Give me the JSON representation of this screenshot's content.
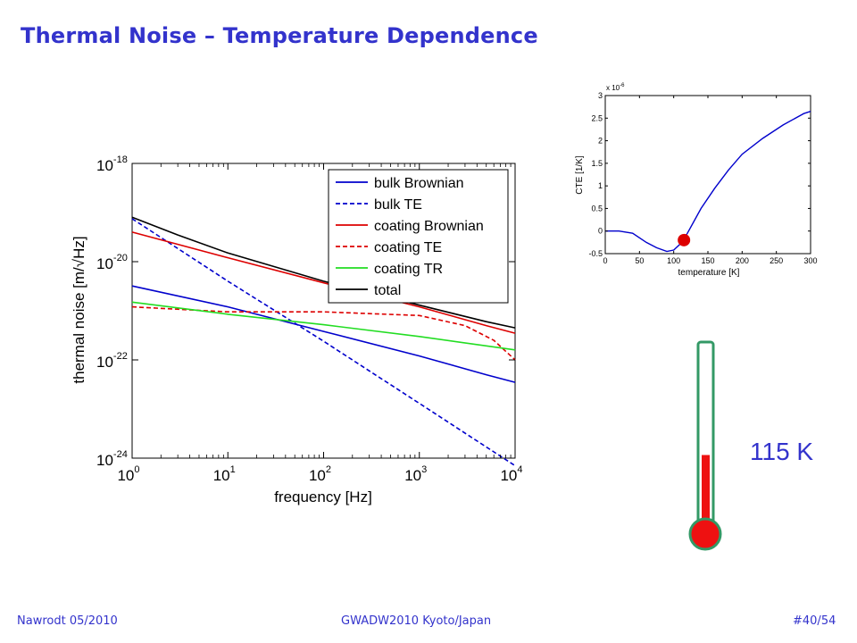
{
  "slide": {
    "title": "Thermal Noise – Temperature Dependence"
  },
  "footer": {
    "left": "Nawrodt 05/2010",
    "center": "GWADW2010 Kyoto/Japan",
    "right": "#40/54"
  },
  "thermometer": {
    "label": "115 K",
    "level": 0.42
  },
  "colors": {
    "title": "#3333cc",
    "blue": "#0000cc",
    "red": "#dd0000",
    "green": "#22dd22",
    "black": "#000000"
  },
  "chart_data": [
    {
      "type": "line",
      "xlabel": "frequency [Hz]",
      "ylabel": "thermal noise [m/√Hz]",
      "xscale": "log",
      "yscale": "log",
      "xlim": [
        1,
        10000
      ],
      "ylim": [
        1e-24,
        1e-18
      ],
      "xticks": [
        {
          "v": 1,
          "base": "10",
          "exp": "0"
        },
        {
          "v": 10,
          "base": "10",
          "exp": "1"
        },
        {
          "v": 100,
          "base": "10",
          "exp": "2"
        },
        {
          "v": 1000,
          "base": "10",
          "exp": "3"
        },
        {
          "v": 10000,
          "base": "10",
          "exp": "4"
        }
      ],
      "yticks": [
        {
          "v": 1e-18,
          "base": "10",
          "exp": "-18"
        },
        {
          "v": 1e-20,
          "base": "10",
          "exp": "-20"
        },
        {
          "v": 1e-22,
          "base": "10",
          "exp": "-22"
        },
        {
          "v": 1e-24,
          "base": "10",
          "exp": "-24"
        }
      ],
      "legend_position": "top-right",
      "series": [
        {
          "name": "bulk Brownian",
          "color": "#0000cc",
          "dash": false,
          "x": [
            1,
            10,
            100,
            1000,
            5000,
            10000
          ],
          "y": [
            3.2e-21,
            1.2e-21,
            3.8e-22,
            1.2e-22,
            5e-23,
            3.5e-23
          ]
        },
        {
          "name": "bulk TE",
          "color": "#0000cc",
          "dash": true,
          "x": [
            1,
            10,
            100,
            1000,
            10000
          ],
          "y": [
            7.5e-20,
            4e-21,
            2.4e-22,
            1.3e-23,
            7e-25
          ]
        },
        {
          "name": "coating Brownian",
          "color": "#dd0000",
          "dash": false,
          "x": [
            1,
            10,
            100,
            1000,
            5000,
            10000
          ],
          "y": [
            4e-20,
            1.2e-20,
            3.7e-21,
            1.2e-21,
            5e-22,
            3.5e-22
          ]
        },
        {
          "name": "coating TE",
          "color": "#dd0000",
          "dash": true,
          "x": [
            1,
            10,
            100,
            1000,
            3000,
            6000,
            10000
          ],
          "y": [
            1.2e-21,
            9.5e-22,
            9.5e-22,
            8e-22,
            5e-22,
            2.5e-22,
            1e-22
          ]
        },
        {
          "name": "coating TR",
          "color": "#22dd22",
          "dash": false,
          "x": [
            1,
            10,
            100,
            1000,
            10000
          ],
          "y": [
            1.5e-21,
            8.5e-22,
            5.2e-22,
            3e-22,
            1.6e-22
          ]
        },
        {
          "name": "total",
          "color": "#000000",
          "dash": false,
          "x": [
            1,
            3,
            10,
            100,
            1000,
            5000,
            10000
          ],
          "y": [
            8e-20,
            3.5e-20,
            1.5e-20,
            4e-21,
            1.3e-21,
            6e-22,
            4.5e-22
          ]
        }
      ]
    },
    {
      "type": "line",
      "xlabel": "temperature [K]",
      "ylabel": "CTE [1/K]",
      "multiplier": {
        "base": "x 10",
        "exp": "-6"
      },
      "xlim": [
        0,
        300
      ],
      "ylim": [
        -0.5,
        3
      ],
      "xticks": [
        0,
        50,
        100,
        150,
        200,
        250,
        300
      ],
      "yticks": [
        -0.5,
        0,
        0.5,
        1,
        1.5,
        2,
        2.5,
        3
      ],
      "series": [
        {
          "name": "",
          "color": "#0000cc",
          "x": [
            0,
            20,
            40,
            60,
            75,
            90,
            100,
            110,
            120,
            140,
            160,
            180,
            200,
            230,
            260,
            290,
            300
          ],
          "y": [
            0,
            0,
            -0.05,
            -0.25,
            -0.37,
            -0.45,
            -0.42,
            -0.28,
            -0.05,
            0.5,
            0.95,
            1.35,
            1.7,
            2.05,
            2.35,
            2.6,
            2.65
          ]
        }
      ],
      "marker": {
        "x": 115,
        "y": -0.2,
        "color": "#dd0000"
      }
    }
  ]
}
